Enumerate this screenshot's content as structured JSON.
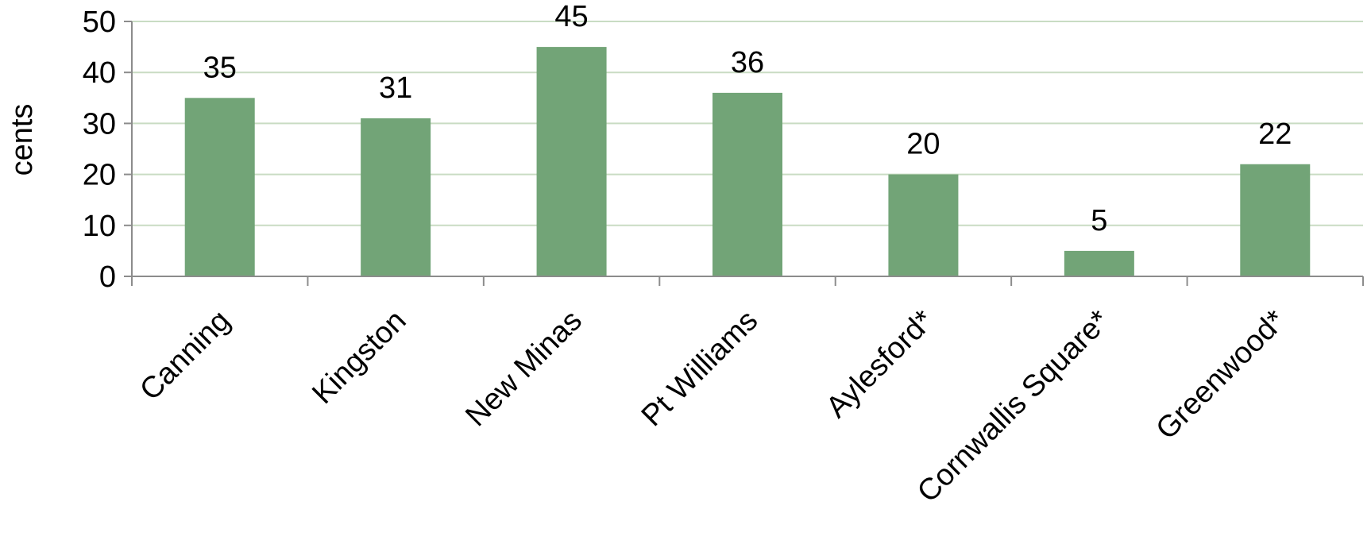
{
  "chart_data": {
    "type": "bar",
    "categories": [
      "Canning",
      "Kingston",
      "New Minas",
      "Pt Williams",
      "Aylesford*",
      "Cornwallis Square*",
      "Greenwood*"
    ],
    "values": [
      35,
      31,
      45,
      36,
      20,
      5,
      22
    ],
    "ylabel": "cents",
    "xlabel": "",
    "ylim": [
      0,
      50
    ],
    "yticks": [
      0,
      10,
      20,
      30,
      40,
      50
    ],
    "grid": true,
    "bar_color": "#72a477",
    "grid_color": "#c9dcc3",
    "axis_color": "#8c8c8c"
  }
}
